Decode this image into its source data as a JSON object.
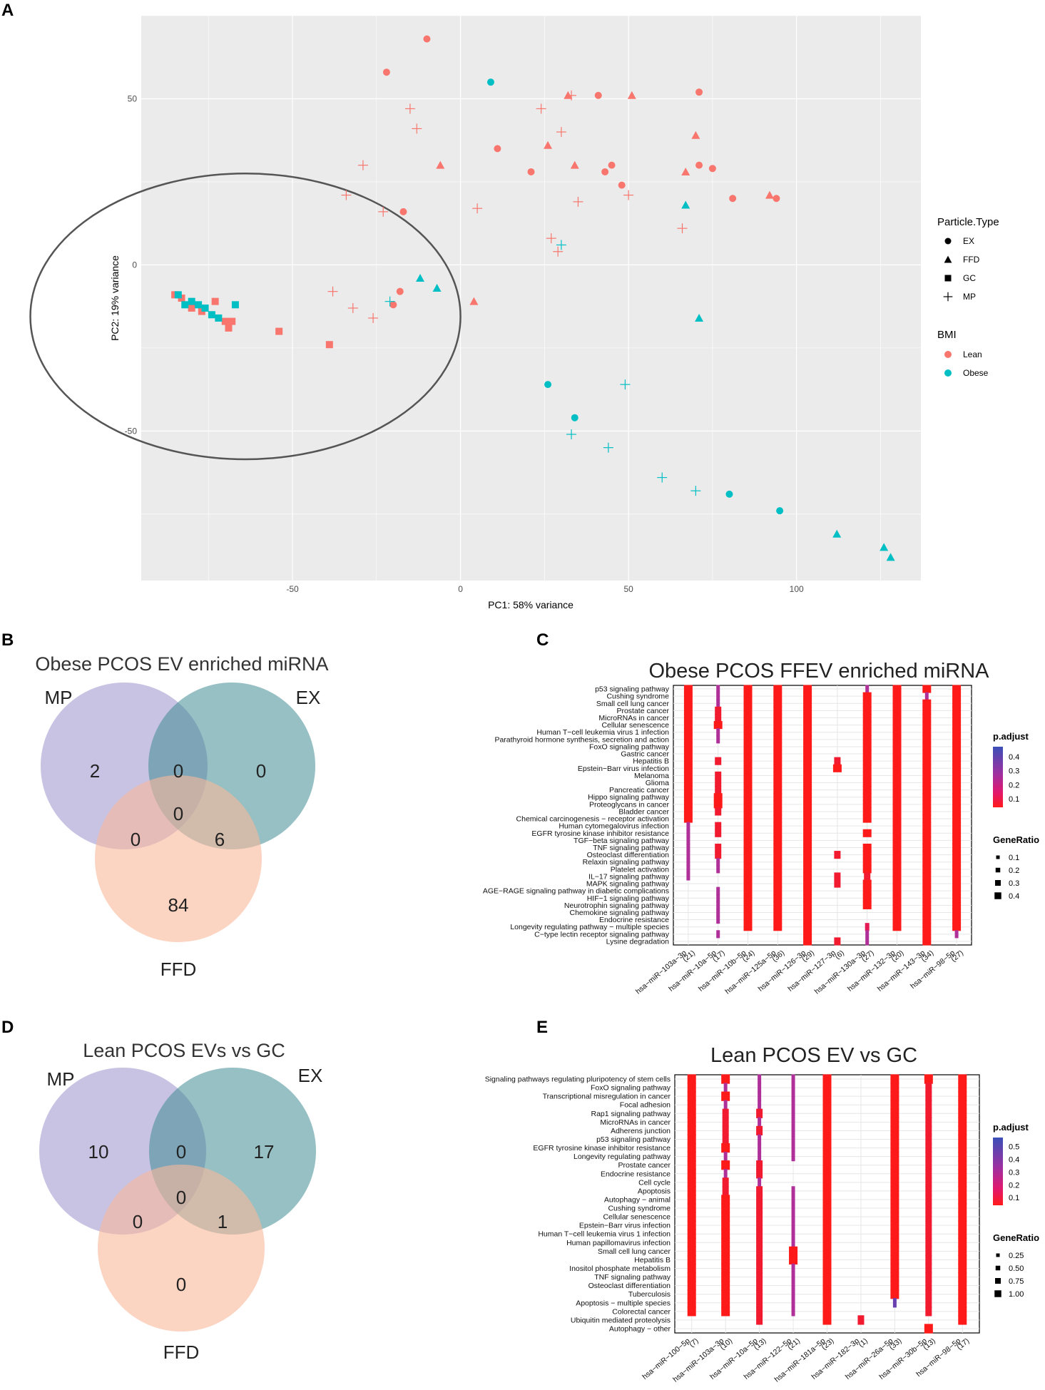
{
  "panel_labels": {
    "a": "A",
    "b": "B",
    "c": "C",
    "d": "D",
    "e": "E"
  },
  "chart_data": [
    {
      "type": "scatter",
      "panel": "A",
      "xlabel": "PC1: 58% variance",
      "ylabel": "PC2: 19% variance",
      "xlim": [
        -95,
        137
      ],
      "ylim": [
        -95,
        75
      ],
      "xticks": [
        -50,
        0,
        50,
        100
      ],
      "yticks": [
        -50,
        0,
        50
      ],
      "legend": {
        "shape_title": "Particle.Type",
        "shapes": [
          "EX",
          "FFD",
          "GC",
          "MP"
        ],
        "color_title": "BMI",
        "colors": [
          {
            "name": "Lean",
            "color": "#F8766D"
          },
          {
            "name": "Obese",
            "color": "#00BFC4"
          }
        ]
      },
      "ellipse": {
        "cx": -64,
        "cy": -15.5,
        "rx": 64,
        "ry": 43
      },
      "points": [
        {
          "x": -10,
          "y": 68,
          "type": "EX",
          "bmi": "Lean"
        },
        {
          "x": -22,
          "y": 58,
          "type": "EX",
          "bmi": "Lean"
        },
        {
          "x": 9,
          "y": 55,
          "type": "EX",
          "bmi": "Obese"
        },
        {
          "x": 41,
          "y": 51,
          "type": "EX",
          "bmi": "Lean"
        },
        {
          "x": 71,
          "y": 52,
          "type": "EX",
          "bmi": "Lean"
        },
        {
          "x": 11,
          "y": 35,
          "type": "EX",
          "bmi": "Lean"
        },
        {
          "x": 21,
          "y": 28,
          "type": "EX",
          "bmi": "Lean"
        },
        {
          "x": 43,
          "y": 28,
          "type": "EX",
          "bmi": "Lean"
        },
        {
          "x": 45,
          "y": 30,
          "type": "EX",
          "bmi": "Lean"
        },
        {
          "x": 48,
          "y": 24,
          "type": "EX",
          "bmi": "Lean"
        },
        {
          "x": 71,
          "y": 30,
          "type": "EX",
          "bmi": "Lean"
        },
        {
          "x": 75,
          "y": 29,
          "type": "EX",
          "bmi": "Lean"
        },
        {
          "x": 81,
          "y": 20,
          "type": "EX",
          "bmi": "Lean"
        },
        {
          "x": 94,
          "y": 20,
          "type": "EX",
          "bmi": "Lean"
        },
        {
          "x": -17,
          "y": 16,
          "type": "EX",
          "bmi": "Lean"
        },
        {
          "x": -18,
          "y": -8,
          "type": "EX",
          "bmi": "Lean"
        },
        {
          "x": -20,
          "y": -12,
          "type": "EX",
          "bmi": "Lean"
        },
        {
          "x": 26,
          "y": -36,
          "type": "EX",
          "bmi": "Obese"
        },
        {
          "x": 34,
          "y": -46,
          "type": "EX",
          "bmi": "Obese"
        },
        {
          "x": 80,
          "y": -69,
          "type": "EX",
          "bmi": "Obese"
        },
        {
          "x": 95,
          "y": -74,
          "type": "EX",
          "bmi": "Obese"
        },
        {
          "x": 32,
          "y": 51,
          "type": "FFD",
          "bmi": "Lean"
        },
        {
          "x": 51,
          "y": 51,
          "type": "FFD",
          "bmi": "Lean"
        },
        {
          "x": 70,
          "y": 39,
          "type": "FFD",
          "bmi": "Lean"
        },
        {
          "x": 26,
          "y": 36,
          "type": "FFD",
          "bmi": "Lean"
        },
        {
          "x": 34,
          "y": 30,
          "type": "FFD",
          "bmi": "Lean"
        },
        {
          "x": -6,
          "y": 30,
          "type": "FFD",
          "bmi": "Lean"
        },
        {
          "x": 67,
          "y": 28,
          "type": "FFD",
          "bmi": "Lean"
        },
        {
          "x": 92,
          "y": 21,
          "type": "FFD",
          "bmi": "Lean"
        },
        {
          "x": 67,
          "y": 18,
          "type": "FFD",
          "bmi": "Obese"
        },
        {
          "x": 4,
          "y": -11,
          "type": "FFD",
          "bmi": "Lean"
        },
        {
          "x": -12,
          "y": -4,
          "type": "FFD",
          "bmi": "Obese"
        },
        {
          "x": -7,
          "y": -7,
          "type": "FFD",
          "bmi": "Obese"
        },
        {
          "x": 71,
          "y": -16,
          "type": "FFD",
          "bmi": "Obese"
        },
        {
          "x": 112,
          "y": -81,
          "type": "FFD",
          "bmi": "Obese"
        },
        {
          "x": 126,
          "y": -85,
          "type": "FFD",
          "bmi": "Obese"
        },
        {
          "x": 128,
          "y": -88,
          "type": "FFD",
          "bmi": "Obese"
        },
        {
          "x": -85,
          "y": -9,
          "type": "GC",
          "bmi": "Lean"
        },
        {
          "x": -83,
          "y": -10,
          "type": "GC",
          "bmi": "Lean"
        },
        {
          "x": -80,
          "y": -13,
          "type": "GC",
          "bmi": "Lean"
        },
        {
          "x": -77,
          "y": -14,
          "type": "GC",
          "bmi": "Lean"
        },
        {
          "x": -73,
          "y": -11,
          "type": "GC",
          "bmi": "Lean"
        },
        {
          "x": -70,
          "y": -17,
          "type": "GC",
          "bmi": "Lean"
        },
        {
          "x": -69,
          "y": -19,
          "type": "GC",
          "bmi": "Lean"
        },
        {
          "x": -68,
          "y": -17,
          "type": "GC",
          "bmi": "Lean"
        },
        {
          "x": -54,
          "y": -20,
          "type": "GC",
          "bmi": "Lean"
        },
        {
          "x": -39,
          "y": -24,
          "type": "GC",
          "bmi": "Lean"
        },
        {
          "x": -84,
          "y": -9,
          "type": "GC",
          "bmi": "Obese"
        },
        {
          "x": -82,
          "y": -12,
          "type": "GC",
          "bmi": "Obese"
        },
        {
          "x": -80,
          "y": -11,
          "type": "GC",
          "bmi": "Obese"
        },
        {
          "x": -78,
          "y": -12,
          "type": "GC",
          "bmi": "Obese"
        },
        {
          "x": -76,
          "y": -13,
          "type": "GC",
          "bmi": "Obese"
        },
        {
          "x": -74,
          "y": -15,
          "type": "GC",
          "bmi": "Obese"
        },
        {
          "x": -72,
          "y": -16,
          "type": "GC",
          "bmi": "Obese"
        },
        {
          "x": -67,
          "y": -12,
          "type": "GC",
          "bmi": "Obese"
        },
        {
          "x": -15,
          "y": 47,
          "type": "MP",
          "bmi": "Lean"
        },
        {
          "x": -13,
          "y": 41,
          "type": "MP",
          "bmi": "Lean"
        },
        {
          "x": 24,
          "y": 47,
          "type": "MP",
          "bmi": "Lean"
        },
        {
          "x": 33,
          "y": 51,
          "type": "MP",
          "bmi": "Lean"
        },
        {
          "x": 30,
          "y": 40,
          "type": "MP",
          "bmi": "Lean"
        },
        {
          "x": -29,
          "y": 30,
          "type": "MP",
          "bmi": "Lean"
        },
        {
          "x": -34,
          "y": 21,
          "type": "MP",
          "bmi": "Lean"
        },
        {
          "x": -23,
          "y": 16,
          "type": "MP",
          "bmi": "Lean"
        },
        {
          "x": 5,
          "y": 17,
          "type": "MP",
          "bmi": "Lean"
        },
        {
          "x": 35,
          "y": 19,
          "type": "MP",
          "bmi": "Lean"
        },
        {
          "x": 50,
          "y": 21,
          "type": "MP",
          "bmi": "Lean"
        },
        {
          "x": 66,
          "y": 11,
          "type": "MP",
          "bmi": "Lean"
        },
        {
          "x": 27,
          "y": 8,
          "type": "MP",
          "bmi": "Lean"
        },
        {
          "x": 29,
          "y": 4,
          "type": "MP",
          "bmi": "Lean"
        },
        {
          "x": -38,
          "y": -8,
          "type": "MP",
          "bmi": "Lean"
        },
        {
          "x": -32,
          "y": -13,
          "type": "MP",
          "bmi": "Lean"
        },
        {
          "x": -26,
          "y": -16,
          "type": "MP",
          "bmi": "Lean"
        },
        {
          "x": 30,
          "y": 6,
          "type": "MP",
          "bmi": "Obese"
        },
        {
          "x": -21,
          "y": -11,
          "type": "MP",
          "bmi": "Obese"
        },
        {
          "x": 49,
          "y": -36,
          "type": "MP",
          "bmi": "Obese"
        },
        {
          "x": 33,
          "y": -51,
          "type": "MP",
          "bmi": "Obese"
        },
        {
          "x": 44,
          "y": -55,
          "type": "MP",
          "bmi": "Obese"
        },
        {
          "x": 60,
          "y": -64,
          "type": "MP",
          "bmi": "Obese"
        },
        {
          "x": 70,
          "y": -68,
          "type": "MP",
          "bmi": "Obese"
        }
      ]
    },
    {
      "type": "venn",
      "panel": "B",
      "title": "Obese PCOS EV enriched miRNA",
      "sets": [
        "MP",
        "EX",
        "FFD"
      ],
      "regions": {
        "MP_only": "2",
        "MP_EX": "0",
        "EX_only": "0",
        "center": "0",
        "MP_FFD": "0",
        "EX_FFD": "6",
        "FFD_only": "84"
      }
    },
    {
      "type": "dotplot",
      "panel": "C",
      "title": "Obese PCOS FFEV enriched miRNA",
      "pathways": [
        "p53 signaling pathway",
        "Cushing syndrome",
        "Small cell lung cancer",
        "Prostate cancer",
        "MicroRNAs in cancer",
        "Cellular senescence",
        "Human T−cell leukemia virus 1 infection",
        "Parathyroid hormone synthesis, secretion and action",
        "FoxO signaling pathway",
        "Gastric cancer",
        "Hepatitis B",
        "Epstein−Barr virus infection",
        "Melanoma",
        "Glioma",
        "Pancreatic cancer",
        "Hippo signaling pathway",
        "Proteoglycans in cancer",
        "Bladder cancer",
        "Chemical carcinogenesis − receptor activation",
        "Human cytomegalovirus infection",
        "EGFR tyrosine kinase inhibitor resistance",
        "TGF−beta signaling pathway",
        "TNF signaling pathway",
        "Osteoclast differentiation",
        "Relaxin signaling pathway",
        "Platelet activation",
        "IL−17 signaling pathway",
        "MAPK signaling pathway",
        "AGE−RAGE signaling pathway in diabetic complications",
        "HIF−1 signaling pathway",
        "Neurotrophin signaling pathway",
        "Chemokine signaling pathway",
        "Endocrine resistance",
        "Longevity regulating pathway − multiple species",
        "C−type lectin receptor signaling pathway",
        "Lysine degradation"
      ],
      "mirnas": [
        {
          "name": "hsa−miR−103a−3p",
          "count": "(21)"
        },
        {
          "name": "hsa−miR−10a−5p",
          "count": "(17)"
        },
        {
          "name": "hsa−miR−10b−5p",
          "count": "(24)"
        },
        {
          "name": "hsa−miR−125a−5p",
          "count": "(36)"
        },
        {
          "name": "hsa−miR−126−3p",
          "count": "(29)"
        },
        {
          "name": "hsa−miR−127−3p",
          "count": "(6)"
        },
        {
          "name": "hsa−miR−130a−3p",
          "count": "(27)"
        },
        {
          "name": "hsa−miR−132−3p",
          "count": "(20)"
        },
        {
          "name": "hsa−miR−143−3p",
          "count": "(34)"
        },
        {
          "name": "hsa−miR−98−5p",
          "count": "(27)"
        }
      ],
      "legend": {
        "color_title": "p.adjust",
        "color_ticks": [
          "0.4",
          "0.3",
          "0.2",
          "0.1"
        ],
        "size_title": "GeneRatio",
        "size_ticks": [
          "0.1",
          "0.2",
          "0.3",
          "0.4"
        ]
      }
    },
    {
      "type": "venn",
      "panel": "D",
      "title": "Lean PCOS EVs vs GC",
      "sets": [
        "MP",
        "EX",
        "FFD"
      ],
      "regions": {
        "MP_only": "10",
        "MP_EX": "0",
        "EX_only": "17",
        "center": "0",
        "MP_FFD": "0",
        "EX_FFD": "1",
        "FFD_only": "0"
      }
    },
    {
      "type": "dotplot",
      "panel": "E",
      "title": "Lean PCOS EV vs GC",
      "pathways": [
        "Signaling pathways regulating pluripotency of stem cells",
        "FoxO signaling pathway",
        "Transcriptional misregulation in cancer",
        "Focal adhesion",
        "Rap1 signaling pathway",
        "MicroRNAs in cancer",
        "Adherens junction",
        "p53 signaling pathway",
        "EGFR tyrosine kinase inhibitor resistance",
        "Longevity regulating pathway",
        "Prostate cancer",
        "Endocrine resistance",
        "Cell cycle",
        "Apoptosis",
        "Autophagy − animal",
        "Cushing syndrome",
        "Cellular senescence",
        "Epstein−Barr virus infection",
        "Human T−cell leukemia virus 1 infection",
        "Human papillomavirus infection",
        "Small cell lung cancer",
        "Hepatitis B",
        "Inositol phosphate metabolism",
        "TNF signaling pathway",
        "Osteoclast differentiation",
        "Tuberculosis",
        "Apoptosis − multiple species",
        "Colorectal cancer",
        "Ubiquitin mediated proteolysis",
        "Autophagy − other"
      ],
      "mirnas": [
        {
          "name": "hsa−miR−100−5p",
          "count": "(7)"
        },
        {
          "name": "hsa−miR−103a−3p",
          "count": "(10)"
        },
        {
          "name": "hsa−miR−10a−5p",
          "count": "(13)"
        },
        {
          "name": "hsa−miR−122−5p",
          "count": "(21)"
        },
        {
          "name": "hsa−miR−181a−5p",
          "count": "(23)"
        },
        {
          "name": "hsa−miR−182−3p",
          "count": "(1)"
        },
        {
          "name": "hsa−miR−26a−5p",
          "count": "(33)"
        },
        {
          "name": "hsa−miR−30b−5p",
          "count": "(13)"
        },
        {
          "name": "hsa−miR−98−5p",
          "count": "(17)"
        }
      ],
      "legend": {
        "color_title": "p.adjust",
        "color_ticks": [
          "0.5",
          "0.4",
          "0.3",
          "0.2",
          "0.1"
        ],
        "size_title": "GeneRatio",
        "size_ticks": [
          "0.25",
          "0.50",
          "0.75",
          "1.00"
        ]
      }
    }
  ]
}
